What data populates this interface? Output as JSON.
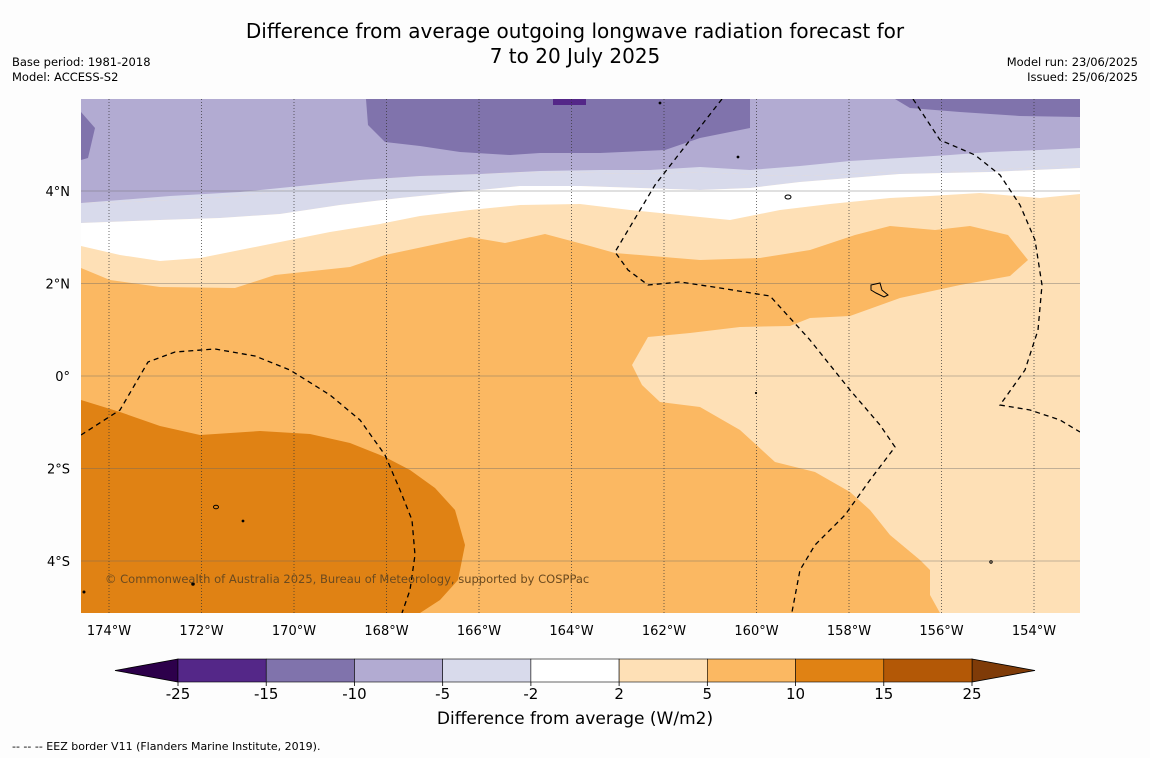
{
  "title": {
    "line1": "Difference from average outgoing longwave radiation forecast for",
    "line2": "7 to 20 July 2025"
  },
  "meta_left": {
    "base_period": "Base period: 1981-2018",
    "model": "Model: ACCESS-S2"
  },
  "meta_right": {
    "model_run": "Model run: 23/06/2025",
    "issued": "Issued: 25/06/2025"
  },
  "map": {
    "lat_labels": [
      "4°N",
      "2°N",
      "0°",
      "2°S",
      "4°S"
    ],
    "lon_labels": [
      "174°W",
      "172°W",
      "170°W",
      "168°W",
      "166°W",
      "164°W",
      "162°W",
      "160°W",
      "158°W",
      "156°W",
      "154°W"
    ],
    "copyright": "© Commonwealth of Australia 2025, Bureau of Meteorology, supported by COSPPac"
  },
  "colorbar": {
    "ticks": [
      "-25",
      "-15",
      "-10",
      "-5",
      "-2",
      "2",
      "5",
      "10",
      "15",
      "25"
    ],
    "colors": [
      "#542788",
      "#8073ac",
      "#b2abd2",
      "#d8daeb",
      "#ffffff",
      "#fee0b6",
      "#fbb862",
      "#e08214",
      "#b35806"
    ],
    "under_color": "#2d004b",
    "over_color": "#7f3b08",
    "label": "Difference from average (W/m2)"
  },
  "footnote": "--  --  -- EEZ border V11 (Flanders Marine Institute, 2019)."
}
